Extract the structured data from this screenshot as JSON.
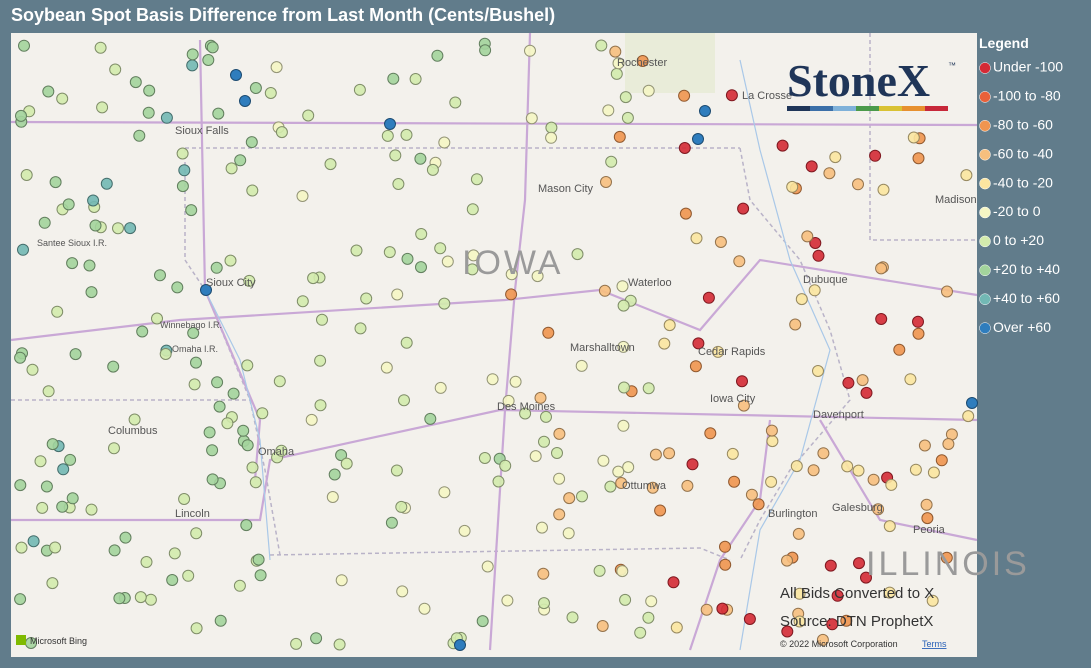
{
  "title": "Soybean Spot Basis Difference from Last Month (Cents/Bushel)",
  "legend": {
    "title": "Legend",
    "items": [
      {
        "label": "Under -100",
        "color": "#d42a35"
      },
      {
        "label": "-100 to -80",
        "color": "#e8613a"
      },
      {
        "label": "-80 to -60",
        "color": "#f0954f"
      },
      {
        "label": "-60 to -40",
        "color": "#f7bf7e"
      },
      {
        "label": "-40 to -20",
        "color": "#fbe5a0"
      },
      {
        "label": "-20 to 0",
        "color": "#f5f6c4"
      },
      {
        "label": "0 to +20",
        "color": "#d3ebad"
      },
      {
        "label": "+20 to +40",
        "color": "#a3d49c"
      },
      {
        "label": "+40 to +60",
        "color": "#72b8b4"
      },
      {
        "label": "Over +60",
        "color": "#2f7dbd"
      }
    ]
  },
  "map": {
    "labels": [
      "Rochester",
      "La Crosse",
      "Sioux Falls",
      "Mason City",
      "IOWA",
      "Waterloo",
      "Dubuque",
      "Sioux City",
      "Winnebago I.R.",
      "Omaha I.R.",
      "Marshalltown",
      "Cedar Rapids",
      "Iowa City",
      "Davenport",
      "Des Moines",
      "Columbus",
      "Omaha",
      "Lincoln",
      "Ottumwa",
      "Burlington",
      "Galesburg",
      "Peoria",
      "ILLINOIS",
      "Madison",
      "Santee Sioux I.R."
    ],
    "attribution": "© 2022 Microsoft Corporation",
    "terms": "Terms",
    "bing": "Microsoft Bing"
  },
  "notes": [
    "All Bids Converted to X",
    "Source: DTN ProphetX"
  ],
  "logo": {
    "text": "StoneX",
    "mark": "™"
  }
}
